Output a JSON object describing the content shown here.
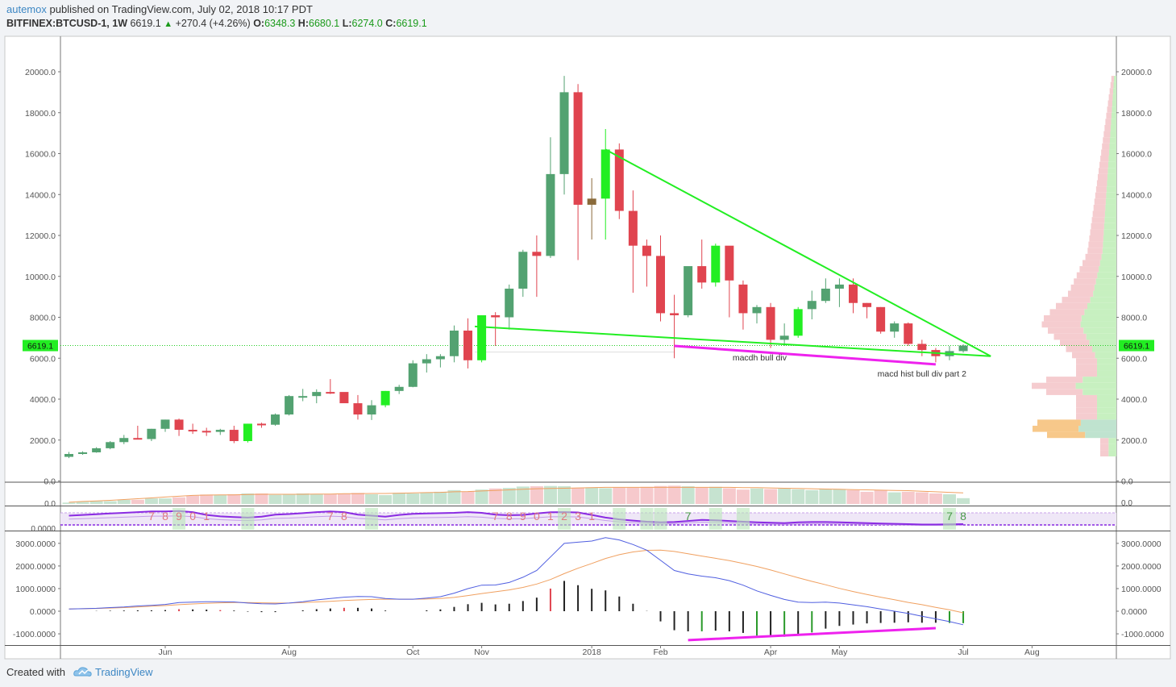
{
  "header": {
    "author": "autemox",
    "published": "published on TradingView.com, July 02, 2018 10:17 PDT",
    "symbol": "BITFINEX:BTCUSD-1, 1W",
    "last": "6619.1",
    "change": "+270.4 (+4.26%)",
    "o_label": "O:",
    "o": "6348.3",
    "h_label": "H:",
    "h": "6680.1",
    "l_label": "L:",
    "l": "6274.0",
    "c_label": "C:",
    "c": "6619.1"
  },
  "footer": {
    "created": "Created with",
    "brand": "TradingView"
  },
  "colors": {
    "up": "#53a271",
    "down": "#e0444f",
    "bright_up": "#22ee22",
    "trend": "#22ee22",
    "magenta": "#ee22ee",
    "macd": "#4f5ee0",
    "signal": "#f0a060",
    "price_line": "#22cc22"
  },
  "chart_data": [
    {
      "type": "candlestick",
      "ylim": [
        0,
        21000
      ],
      "yticks": [
        0,
        2000,
        4000,
        6000,
        8000,
        10000,
        12000,
        14000,
        16000,
        18000,
        20000
      ],
      "ytick_labels": [
        "0.0",
        "2000.0",
        "4000.0",
        "6000.0",
        "8000.0",
        "10000.0",
        "12000.0",
        "14000.0",
        "16000.0",
        "18000.0",
        "20000.0"
      ],
      "xlabels": [
        {
          "label": "Jun",
          "w": 7
        },
        {
          "label": "Aug",
          "w": 16
        },
        {
          "label": "Oct",
          "w": 25
        },
        {
          "label": "Nov",
          "w": 30
        },
        {
          "label": "2018",
          "w": 38
        },
        {
          "label": "Feb",
          "w": 43
        },
        {
          "label": "Apr",
          "w": 51
        },
        {
          "label": "May",
          "w": 56
        },
        {
          "label": "Jul",
          "w": 65
        },
        {
          "label": "Aug",
          "w": 70
        }
      ],
      "last_price_label": "6619.1",
      "last_price": 6619.1,
      "candles": [
        [
          1180,
          1420,
          1120,
          1320
        ],
        [
          1320,
          1450,
          1280,
          1400
        ],
        [
          1400,
          1650,
          1380,
          1600
        ],
        [
          1600,
          1950,
          1550,
          1900
        ],
        [
          1900,
          2250,
          1800,
          2100
        ],
        [
          2100,
          2700,
          2050,
          2050
        ],
        [
          2050,
          2550,
          1950,
          2550
        ],
        [
          2550,
          3000,
          2400,
          3000
        ],
        [
          3000,
          3050,
          2200,
          2500
        ],
        [
          2500,
          2800,
          2300,
          2450
        ],
        [
          2450,
          2600,
          2200,
          2400
        ],
        [
          2400,
          2550,
          2250,
          2500
        ],
        [
          2500,
          2700,
          1850,
          1950
        ],
        [
          1950,
          2800,
          1880,
          2800
        ],
        [
          2800,
          2850,
          2600,
          2750
        ],
        [
          2750,
          3300,
          2700,
          3250
        ],
        [
          3250,
          4200,
          3200,
          4150
        ],
        [
          4150,
          4500,
          3900,
          4150
        ],
        [
          4150,
          4480,
          3800,
          4350
        ],
        [
          4350,
          4980,
          4250,
          4300
        ],
        [
          4350,
          4300,
          3850,
          3800
        ],
        [
          3800,
          4200,
          3000,
          3250
        ],
        [
          3250,
          3950,
          2980,
          3700
        ],
        [
          3700,
          4400,
          3600,
          4400
        ],
        [
          4400,
          4700,
          4250,
          4600
        ],
        [
          4600,
          5900,
          4580,
          5750
        ],
        [
          5750,
          6200,
          5300,
          5950
        ],
        [
          5950,
          6200,
          5550,
          6100
        ],
        [
          6100,
          7600,
          5800,
          7350
        ],
        [
          7350,
          7950,
          5500,
          5900
        ],
        [
          5900,
          8100,
          5800,
          8100
        ],
        [
          8100,
          8250,
          6600,
          8000
        ],
        [
          8000,
          9600,
          7400,
          9400
        ],
        [
          9400,
          11300,
          9000,
          11200
        ],
        [
          11200,
          12000,
          9000,
          11000
        ],
        [
          11000,
          16800,
          10900,
          15000
        ],
        [
          15000,
          19800,
          14000,
          19000
        ],
        [
          19000,
          19400,
          10800,
          13500
        ],
        [
          13500,
          14800,
          11800,
          13800
        ],
        [
          13800,
          17200,
          11800,
          16200
        ],
        [
          16200,
          16500,
          12800,
          13200
        ],
        [
          13200,
          14200,
          9200,
          11500
        ],
        [
          11500,
          11800,
          9500,
          11000
        ],
        [
          11000,
          12000,
          7800,
          8200
        ],
        [
          8200,
          9100,
          6000,
          8100
        ],
        [
          8100,
          10400,
          8000,
          10500
        ],
        [
          10500,
          11800,
          9400,
          9700
        ],
        [
          9700,
          11600,
          9500,
          11500
        ],
        [
          11500,
          11300,
          8000,
          9800
        ],
        [
          9600,
          9800,
          7400,
          8200
        ],
        [
          8200,
          8600,
          7700,
          8500
        ],
        [
          8500,
          8700,
          6500,
          6900
        ],
        [
          6900,
          7700,
          6600,
          7100
        ],
        [
          7100,
          8500,
          7000,
          8400
        ],
        [
          8400,
          9300,
          7900,
          8800
        ],
        [
          8800,
          9900,
          8700,
          9400
        ],
        [
          9400,
          9900,
          8500,
          9600
        ],
        [
          9600,
          9900,
          8200,
          8700
        ],
        [
          8700,
          8700,
          7950,
          8500
        ],
        [
          8500,
          8500,
          7200,
          7300
        ],
        [
          7300,
          7800,
          7000,
          7700
        ],
        [
          7700,
          7750,
          6600,
          6700
        ],
        [
          6700,
          6900,
          6100,
          6400
        ],
        [
          6400,
          6500,
          5800,
          6100
        ],
        [
          6100,
          6600,
          5900,
          6348.3
        ],
        [
          6348.3,
          6680.1,
          6274,
          6619.1
        ]
      ],
      "bright_candles": [
        13,
        23,
        30,
        39,
        47,
        53
      ],
      "doji_candles": [
        38
      ],
      "annotations": [
        {
          "text": "macdh bull div",
          "w": 50.2,
          "p": 5900
        },
        {
          "text": "macd hist bull div part 2",
          "w": 62.0,
          "p": 5100
        }
      ],
      "lines": [
        {
          "name": "upper-trendline",
          "color": "#22ee22",
          "from": [
            39,
            16200
          ],
          "to": [
            67,
            6100
          ]
        },
        {
          "name": "lower-trendline",
          "color": "#22ee22",
          "from": [
            29.5,
            7550
          ],
          "to": [
            67,
            6100
          ]
        },
        {
          "name": "magenta-price-divergence",
          "color": "#ee22ee",
          "from": [
            44,
            6600
          ],
          "to": [
            63,
            5700
          ]
        }
      ]
    },
    {
      "type": "bar",
      "name": "volume",
      "ytick_labels": [
        "0.0"
      ],
      "values": [
        0.5,
        0.8,
        1,
        1,
        1.5,
        1.5,
        2,
        2,
        2.4,
        3,
        3.4,
        3.2,
        3.5,
        3.8,
        3.8,
        3.3,
        3.4,
        3.8,
        3.5,
        3.6,
        3.8,
        4,
        3.5,
        3.2,
        4,
        3.8,
        4.1,
        4.4,
        5,
        4.5,
        5.2,
        5.6,
        5.8,
        6.3,
        6.4,
        6.5,
        6.4,
        5.8,
        6,
        5.7,
        5.9,
        5.9,
        6.2,
        6.5,
        6.6,
        6.4,
        5.9,
        6.2,
        5.7,
        5.2,
        5.6,
        5.4,
        5.6,
        5.3,
        5,
        5.4,
        5.3,
        5,
        4.4,
        5,
        4.2,
        4.4,
        4.2,
        3.8,
        3.5,
        2.1
      ],
      "sma": [
        0.6,
        0.9,
        1.1,
        1.3,
        1.6,
        1.9,
        2.2,
        2.5,
        2.8,
        3.1,
        3.2,
        3.3,
        3.3,
        3.4,
        3.5,
        3.5,
        3.5,
        3.5,
        3.6,
        3.6,
        3.7,
        3.7,
        3.8,
        3.8,
        3.9,
        4,
        4.1,
        4.2,
        4.4,
        4.5,
        4.7,
        4.9,
        5.1,
        5.3,
        5.5,
        5.6,
        5.7,
        5.8,
        5.9,
        6,
        6,
        6,
        6,
        6,
        6,
        6,
        6,
        6,
        6,
        5.9,
        5.9,
        5.8,
        5.7,
        5.6,
        5.5,
        5.4,
        5.3,
        5.2,
        5.1,
        5,
        4.9,
        4.8,
        4.6,
        4.4,
        4.2,
        4
      ]
    },
    {
      "type": "line",
      "name": "td-sequential",
      "ytick_labels": [
        "0.0000"
      ],
      "count_labels": [
        {
          "w": 6,
          "text": "7"
        },
        {
          "w": 7,
          "text": "8"
        },
        {
          "w": 8,
          "text": "9"
        },
        {
          "w": 9,
          "text": "0"
        },
        {
          "w": 10,
          "text": "1"
        },
        {
          "w": 19,
          "text": "7"
        },
        {
          "w": 20,
          "text": "8"
        },
        {
          "w": 31,
          "text": "7"
        },
        {
          "w": 32,
          "text": "8"
        },
        {
          "w": 33,
          "text": "9"
        },
        {
          "w": 34,
          "text": "0"
        },
        {
          "w": 35,
          "text": "1"
        },
        {
          "w": 36,
          "text": "2"
        },
        {
          "w": 37,
          "text": "3"
        },
        {
          "w": 38,
          "text": "1"
        },
        {
          "w": 45,
          "text": "7"
        },
        {
          "w": 64,
          "text": "7"
        },
        {
          "w": 65,
          "text": "8"
        }
      ],
      "values": [
        0.66,
        0.7,
        0.74,
        0.78,
        0.82,
        0.86,
        0.9,
        0.9,
        0.92,
        0.86,
        0.7,
        0.62,
        0.58,
        0.55,
        0.6,
        0.72,
        0.75,
        0.8,
        0.86,
        0.9,
        0.86,
        0.72,
        0.66,
        0.6,
        0.7,
        0.76,
        0.78,
        0.8,
        0.82,
        0.86,
        0.82,
        0.72,
        0.68,
        0.7,
        0.78,
        0.85,
        0.86,
        0.84,
        0.7,
        0.55,
        0.45,
        0.38,
        0.32,
        0.28,
        0.3,
        0.36,
        0.42,
        0.4,
        0.36,
        0.32,
        0.28,
        0.26,
        0.24,
        0.28,
        0.3,
        0.3,
        0.28,
        0.26,
        0.24,
        0.22,
        0.2,
        0.18,
        0.16,
        0.16,
        0.17,
        0.18
      ]
    },
    {
      "type": "bar+line",
      "name": "macd",
      "ylim": [
        -1300,
        3400
      ],
      "yticks": [
        -1000,
        0,
        1000,
        2000,
        3000
      ],
      "ytick_labels": [
        "-1000.0000",
        "0.0000",
        "1000.0000",
        "2000.0000",
        "3000.0000"
      ],
      "macd": [
        100,
        110,
        130,
        160,
        190,
        230,
        260,
        300,
        380,
        400,
        420,
        420,
        410,
        360,
        330,
        320,
        360,
        420,
        500,
        560,
        620,
        650,
        640,
        560,
        530,
        530,
        580,
        640,
        800,
        1000,
        1150,
        1160,
        1270,
        1500,
        1800,
        2400,
        3000,
        3050,
        3100,
        3250,
        3150,
        2950,
        2700,
        2250,
        1800,
        1650,
        1550,
        1480,
        1350,
        1150,
        900,
        700,
        520,
        400,
        380,
        400,
        360,
        280,
        200,
        100,
        0,
        -100,
        -220,
        -340,
        -460,
        -600
      ],
      "signal": [
        100,
        110,
        120,
        140,
        160,
        190,
        220,
        250,
        290,
        320,
        350,
        370,
        380,
        380,
        370,
        360,
        360,
        380,
        410,
        440,
        470,
        500,
        520,
        530,
        530,
        530,
        540,
        560,
        610,
        690,
        780,
        860,
        940,
        1050,
        1200,
        1400,
        1660,
        1900,
        2110,
        2330,
        2500,
        2620,
        2690,
        2700,
        2640,
        2540,
        2440,
        2340,
        2240,
        2110,
        1980,
        1820,
        1650,
        1480,
        1320,
        1170,
        1010,
        870,
        740,
        620,
        510,
        390,
        290,
        170,
        60,
        -70
      ],
      "red_hist": [
        8,
        11,
        20,
        35
      ],
      "green_hist": [
        46,
        50,
        52,
        54,
        64,
        65
      ],
      "divergence_line": {
        "from": [
          45,
          -1280
        ],
        "to": [
          63,
          -750
        ]
      }
    }
  ]
}
